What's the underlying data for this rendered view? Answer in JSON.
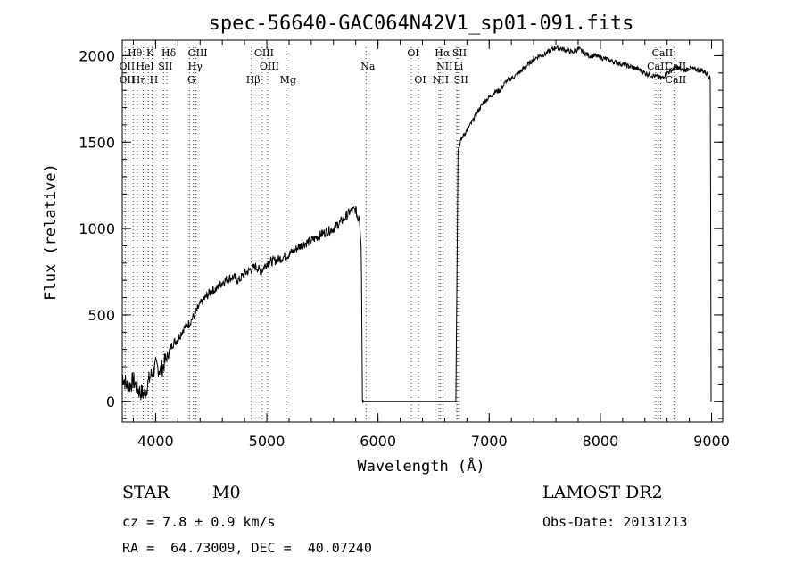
{
  "chart_data": {
    "type": "line",
    "title": "spec-56640-GAC064N42V1_sp01-091.fits",
    "xlabel": "Wavelength (Å)",
    "ylabel": "Flux (relative)",
    "xlim": [
      3700,
      9100
    ],
    "ylim": [
      -120,
      2090
    ],
    "x_ticks": [
      4000,
      5000,
      6000,
      7000,
      8000,
      9000
    ],
    "y_ticks": [
      0,
      500,
      1000,
      1500,
      2000
    ],
    "grid": false,
    "series": [
      {
        "x": [
          3700,
          3750,
          3800,
          3850,
          3900,
          3950,
          4000,
          4050,
          4100,
          4150,
          4200,
          4250,
          4300,
          4350,
          4400,
          4450,
          4500,
          4550,
          4600,
          4650,
          4700,
          4750,
          4800,
          4850,
          4900,
          4950,
          5000,
          5100,
          5200,
          5300,
          5400,
          5500,
          5600,
          5700,
          5750,
          5800,
          5820,
          5830,
          5850,
          5860,
          5870,
          5900,
          6000,
          6200,
          6400,
          6600,
          6700,
          6720,
          6730,
          6740,
          6760,
          6800,
          6850,
          6900,
          6950,
          7000,
          7050,
          7100,
          7150,
          7200,
          7250,
          7300,
          7350,
          7400,
          7450,
          7500,
          7550,
          7600,
          7650,
          7700,
          7750,
          7800,
          7850,
          7900,
          7950,
          8000,
          8050,
          8100,
          8150,
          8200,
          8250,
          8300,
          8350,
          8400,
          8450,
          8500,
          8550,
          8600,
          8650,
          8700,
          8750,
          8800,
          8850,
          8900,
          8950,
          8980,
          8990,
          8995,
          9000
        ],
        "y": [
          150,
          80,
          120,
          60,
          40,
          140,
          200,
          180,
          250,
          330,
          360,
          420,
          450,
          500,
          560,
          600,
          640,
          650,
          690,
          710,
          720,
          700,
          740,
          760,
          780,
          750,
          800,
          820,
          850,
          900,
          930,
          970,
          1000,
          1060,
          1100,
          1110,
          1050,
          1090,
          900,
          20,
          0,
          0,
          0,
          0,
          0,
          0,
          0,
          1450,
          1480,
          1500,
          1530,
          1570,
          1620,
          1680,
          1730,
          1760,
          1790,
          1800,
          1850,
          1870,
          1890,
          1920,
          1950,
          1980,
          2000,
          2010,
          2030,
          2050,
          2040,
          2030,
          2020,
          2040,
          2020,
          2000,
          2000,
          1990,
          1980,
          1970,
          1960,
          1950,
          1940,
          1930,
          1920,
          1900,
          1890,
          1880,
          1870,
          1900,
          1920,
          1930,
          1910,
          1930,
          1920,
          1920,
          1900,
          1880,
          1860,
          0,
          0
        ]
      }
    ],
    "lines_top": [
      {
        "label": "Hθ",
        "x": 3798,
        "row": 0
      },
      {
        "label": "K",
        "x": 3934,
        "row": 0
      },
      {
        "label": "Hδ",
        "x": 4102,
        "row": 0
      },
      {
        "label": "OIII",
        "x": 4363,
        "row": 0
      },
      {
        "label": "OIII",
        "x": 4959,
        "row": 0
      },
      {
        "label": "OI",
        "x": 6300,
        "row": 0
      },
      {
        "label": "Hα",
        "x": 6563,
        "row": 0
      },
      {
        "label": "SII",
        "x": 6717,
        "row": 0
      },
      {
        "label": "CaII",
        "x": 8542,
        "row": 0
      },
      {
        "label": "OII",
        "x": 3727,
        "row": 1
      },
      {
        "label": "HeI",
        "x": 3889,
        "row": 1
      },
      {
        "label": "SII",
        "x": 4072,
        "row": 1
      },
      {
        "label": "Hγ",
        "x": 4340,
        "row": 1
      },
      {
        "label": "OIII",
        "x": 5007,
        "row": 1
      },
      {
        "label": "Na",
        "x": 5893,
        "row": 1
      },
      {
        "label": "NII",
        "x": 6583,
        "row": 1
      },
      {
        "label": "Li",
        "x": 6708,
        "row": 1
      },
      {
        "label": "CaII",
        "x": 8498,
        "row": 1
      },
      {
        "label": "CaII",
        "x": 8662,
        "row": 1
      },
      {
        "label": "OII",
        "x": 3727,
        "row": 2
      },
      {
        "label": "Hη",
        "x": 3835,
        "row": 2
      },
      {
        "label": "H",
        "x": 3968,
        "row": 2
      },
      {
        "label": "G",
        "x": 4304,
        "row": 2
      },
      {
        "label": "Hβ",
        "x": 4861,
        "row": 2
      },
      {
        "label": "Mg",
        "x": 5175,
        "row": 2
      },
      {
        "label": "OI",
        "x": 6364,
        "row": 2
      },
      {
        "label": "NII",
        "x": 6548,
        "row": 2
      },
      {
        "label": "SII",
        "x": 6731,
        "row": 2
      },
      {
        "label": "CaII",
        "x": 8662,
        "row": 2
      }
    ]
  },
  "info": {
    "class_label": "STAR",
    "subclass": "M0",
    "survey": "LAMOST DR2",
    "cz": "cz = 7.8 ± 0.9 km/s",
    "obs_date": "Obs-Date: 20131213",
    "coords": "RA =  64.73009, DEC =  40.07240"
  }
}
